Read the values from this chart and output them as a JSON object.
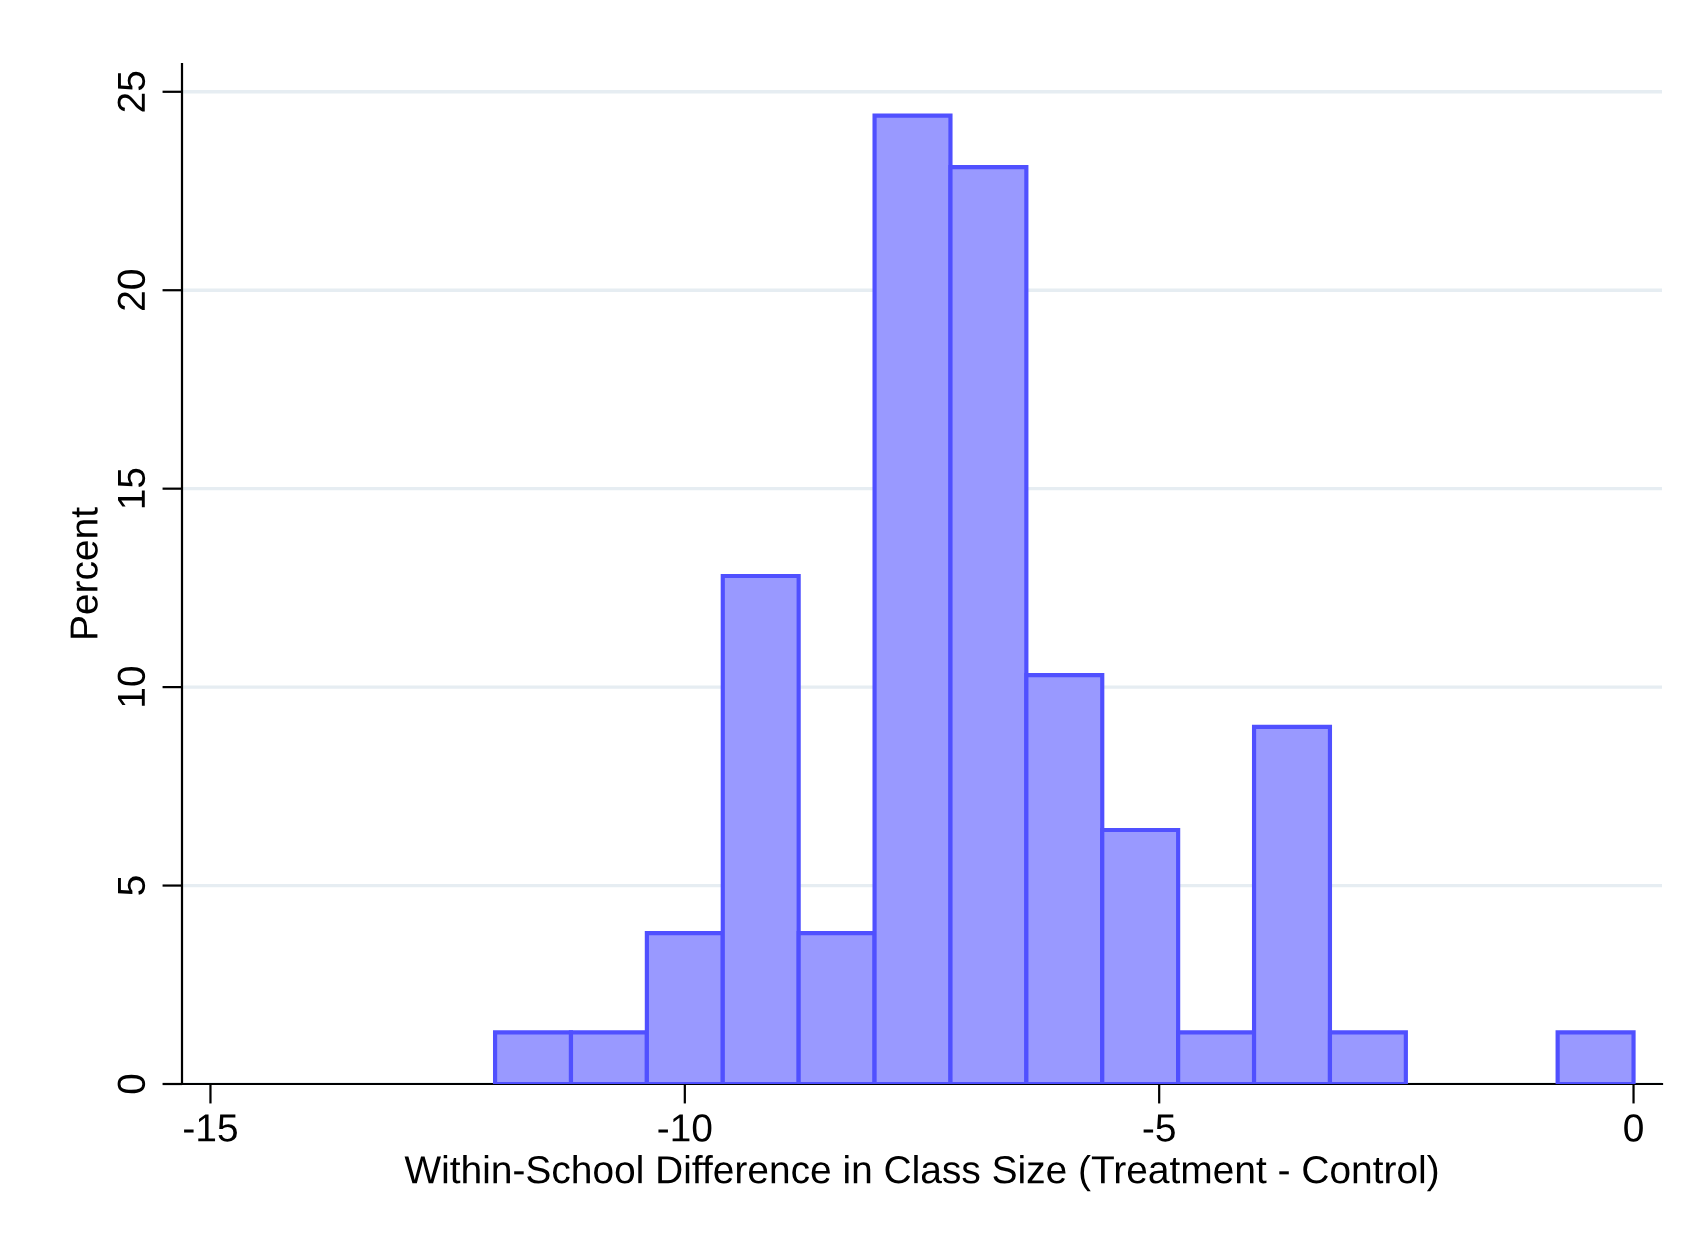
{
  "chart_data": {
    "type": "histogram",
    "xlabel": "Within-School Difference in Class Size (Treatment - Control)",
    "ylabel": "Percent",
    "bins": [
      -12,
      -11.2,
      -10.4,
      -9.6,
      -8.8,
      -8,
      -7.2,
      -6.4,
      -5.6,
      -4.8,
      -4,
      -3.2,
      -2.4,
      -1.6,
      -0.8,
      0
    ],
    "values": [
      1.3,
      1.3,
      3.8,
      12.8,
      3.8,
      24.4,
      23.1,
      10.3,
      6.4,
      1.3,
      9.0,
      1.3,
      0,
      0,
      1.3
    ],
    "color": "#9999ff",
    "xlim": [
      -15.3,
      0.3
    ],
    "xticks": [
      -15,
      -10,
      -5,
      0
    ],
    "ylim": [
      0,
      25.7
    ],
    "yticks": [
      0,
      5,
      10,
      15,
      20,
      25
    ],
    "grid": "y"
  }
}
